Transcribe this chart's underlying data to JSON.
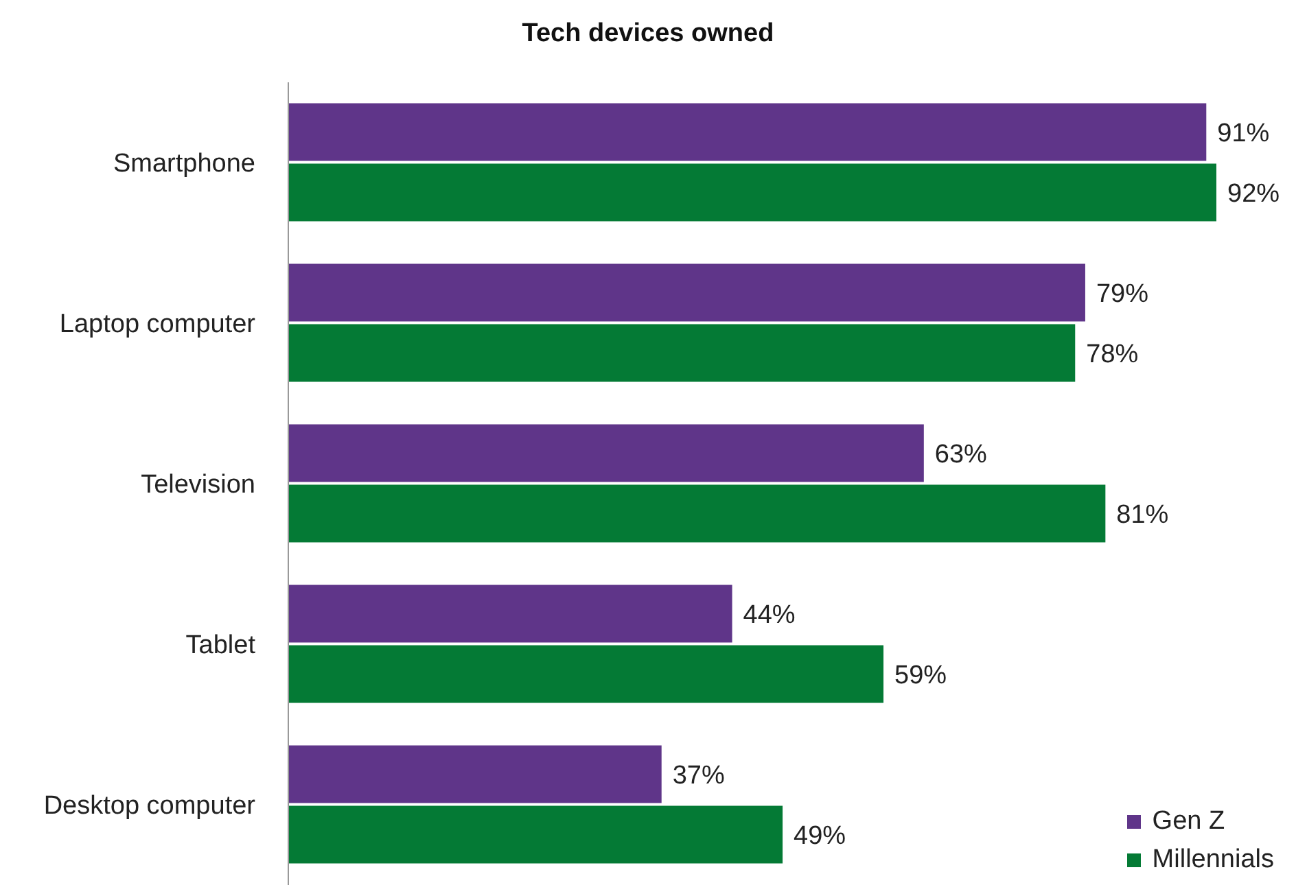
{
  "chart_data": {
    "type": "bar",
    "orientation": "horizontal",
    "title": "Tech devices owned",
    "categories": [
      "Smartphone",
      "Laptop computer",
      "Television",
      "Tablet",
      "Desktop computer"
    ],
    "series": [
      {
        "name": "Gen Z",
        "color": "#5f3589",
        "values": [
          91,
          79,
          63,
          44,
          37
        ],
        "value_labels": [
          "91%",
          "79%",
          "63%",
          "44%",
          "37%"
        ]
      },
      {
        "name": "Millennials",
        "color": "#047a35",
        "values": [
          92,
          78,
          81,
          59,
          49
        ],
        "value_labels": [
          "92%",
          "78%",
          "81%",
          "59%",
          "49%"
        ]
      }
    ],
    "legend": "bottom right"
  }
}
